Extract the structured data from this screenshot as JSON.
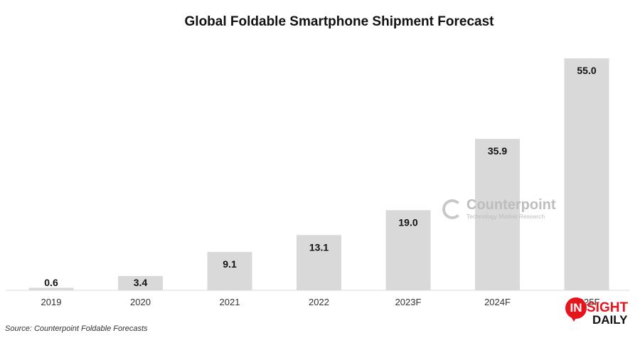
{
  "chart_data": {
    "type": "bar",
    "title": "Global Foldable Smartphone Shipment Forecast",
    "categories": [
      "2019",
      "2020",
      "2021",
      "2022",
      "2023F",
      "2024F",
      "2025F"
    ],
    "values": [
      0.6,
      3.4,
      9.1,
      13.1,
      19.0,
      35.9,
      55.0
    ],
    "value_labels": [
      "0.6",
      "3.4",
      "9.1",
      "13.1",
      "19.0",
      "35.9",
      "55.0"
    ],
    "xlabel": "",
    "ylabel": "",
    "ylim": [
      0,
      55
    ],
    "grid": false,
    "legend": "none",
    "bar_color": "#d9d9d9",
    "source": "Source: Counterpoint Foldable Forecasts"
  },
  "watermark": {
    "name": "Counterpoint",
    "tagline": "Technology Market Research"
  },
  "logo": {
    "in": "IN",
    "sight": "SIGHT",
    "daily": "DAILY",
    "accent": "#e8141c"
  }
}
